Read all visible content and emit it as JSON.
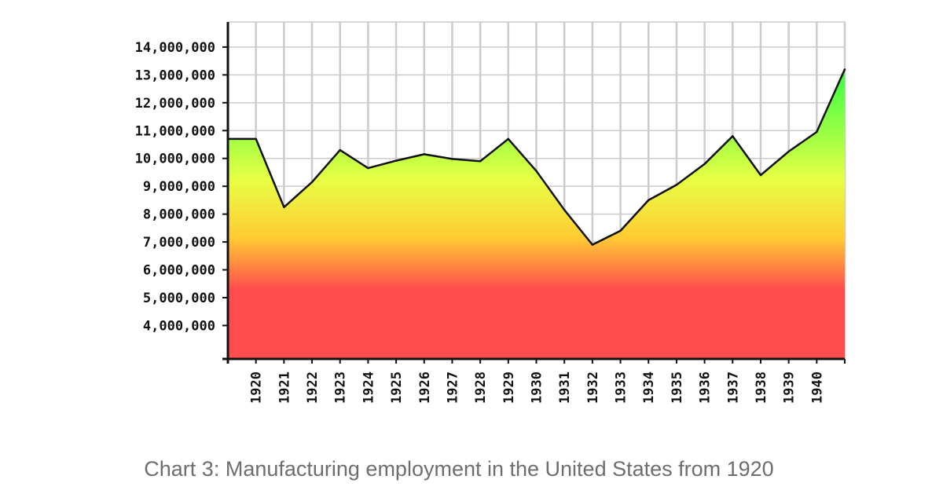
{
  "chart_data": {
    "type": "area",
    "title": "",
    "xlabel": "",
    "ylabel": "",
    "ylim": [
      2800000,
      14900000
    ],
    "yticks": [
      4000000,
      5000000,
      6000000,
      7000000,
      8000000,
      9000000,
      10000000,
      11000000,
      12000000,
      13000000,
      14000000
    ],
    "ytick_labels": [
      "4,000,000",
      "5,000,000",
      "6,000,000",
      "7,000,000",
      "8,000,000",
      "9,000,000",
      "10,000,000",
      "11,000,000",
      "12,000,000",
      "13,000,000",
      "14,000,000"
    ],
    "x_labels": [
      "1920",
      "1921",
      "1922",
      "1923",
      "1924",
      "1925",
      "1926",
      "1927",
      "1928",
      "1929",
      "1930",
      "1931",
      "1932",
      "1933",
      "1934",
      "1935",
      "1936",
      "1937",
      "1938",
      "1939",
      "1940"
    ],
    "series": [
      {
        "name": "Manufacturing employment",
        "points": [
          {
            "x": 1919,
            "y": 10700000
          },
          {
            "x": 1920,
            "y": 10700000
          },
          {
            "x": 1921,
            "y": 8250000
          },
          {
            "x": 1922,
            "y": 9150000
          },
          {
            "x": 1923,
            "y": 10300000
          },
          {
            "x": 1924,
            "y": 9650000
          },
          {
            "x": 1925,
            "y": 9920000
          },
          {
            "x": 1926,
            "y": 10150000
          },
          {
            "x": 1927,
            "y": 9980000
          },
          {
            "x": 1928,
            "y": 9900000
          },
          {
            "x": 1929,
            "y": 10700000
          },
          {
            "x": 1930,
            "y": 9550000
          },
          {
            "x": 1931,
            "y": 8150000
          },
          {
            "x": 1932,
            "y": 6900000
          },
          {
            "x": 1933,
            "y": 7400000
          },
          {
            "x": 1934,
            "y": 8500000
          },
          {
            "x": 1935,
            "y": 9050000
          },
          {
            "x": 1936,
            "y": 9800000
          },
          {
            "x": 1937,
            "y": 10800000
          },
          {
            "x": 1938,
            "y": 9400000
          },
          {
            "x": 1939,
            "y": 10250000
          },
          {
            "x": 1940,
            "y": 10950000
          },
          {
            "x": 1941,
            "y": 13200000
          }
        ]
      }
    ],
    "grid": true,
    "fill_gradient": [
      "#ff4d4d",
      "#ffcc33",
      "#eeff44",
      "#44ff44"
    ],
    "line_color": "#111111",
    "grid_color": "#cccccc"
  },
  "caption": "Chart 3: Manufacturing employment in the United States from 1920"
}
